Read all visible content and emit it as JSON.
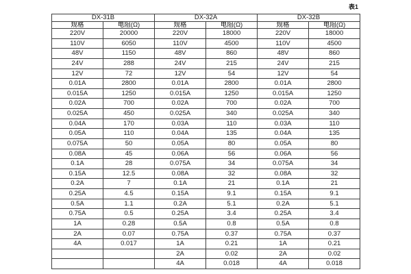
{
  "page": {
    "caption": "表1",
    "colors": {
      "background": "#ffffff",
      "border": "#3d3d3d",
      "text": "#1a1a1a"
    }
  },
  "table": {
    "groups": [
      {
        "name": "DX-31B",
        "col_headers": [
          "规格",
          "电阻(Ω)"
        ]
      },
      {
        "name": "DX-32A",
        "col_headers": [
          "规格",
          "电阻(Ω)"
        ]
      },
      {
        "name": "DX-32B",
        "col_headers": [
          "规格",
          "电阻(Ω)"
        ]
      }
    ],
    "rows": [
      [
        "220V",
        "20000",
        "220V",
        "18000",
        "220V",
        "18000"
      ],
      [
        "110V",
        "6050",
        "110V",
        "4500",
        "110V",
        "4500"
      ],
      [
        "48V",
        "1150",
        "48V",
        "860",
        "48V",
        "860"
      ],
      [
        "24V",
        "288",
        "24V",
        "215",
        "24V",
        "215"
      ],
      [
        "12V",
        "72",
        "12V",
        "54",
        "12V",
        "54"
      ],
      [
        "0.01A",
        "2800",
        "0.01A",
        "2800",
        "0.01A",
        "2800"
      ],
      [
        "0.015A",
        "1250",
        "0.015A",
        "1250",
        "0.015A",
        "1250"
      ],
      [
        "0.02A",
        "700",
        "0.02A",
        "700",
        "0.02A",
        "700"
      ],
      [
        "0.025A",
        "450",
        "0.025A",
        "340",
        "0.025A",
        "340"
      ],
      [
        "0.04A",
        "170",
        "0.03A",
        "110",
        "0.03A",
        "110"
      ],
      [
        "0.05A",
        "110",
        "0.04A",
        "135",
        "0.04A",
        "135"
      ],
      [
        "0.075A",
        "50",
        "0.05A",
        "80",
        "0.05A",
        "80"
      ],
      [
        "0.08A",
        "45",
        "0.06A",
        "56",
        "0.06A",
        "56"
      ],
      [
        "0.1A",
        "28",
        "0.075A",
        "34",
        "0.075A",
        "34"
      ],
      [
        "0.15A",
        "12.5",
        "0.08A",
        "32",
        "0.08A",
        "32"
      ],
      [
        "0.2A",
        "7",
        "0.1A",
        "21",
        "0.1A",
        "21"
      ],
      [
        "0.25A",
        "4.5",
        "0.15A",
        "9.1",
        "0.15A",
        "9.1"
      ],
      [
        "0.5A",
        "1.1",
        "0.2A",
        "5.1",
        "0.2A",
        "5.1"
      ],
      [
        "0.75A",
        "0.5",
        "0.25A",
        "3.4",
        "0.25A",
        "3.4"
      ],
      [
        "1A",
        "0.28",
        "0.5A",
        "0.8",
        "0.5A",
        "0.8"
      ],
      [
        "2A",
        "0.07",
        "0.75A",
        "0.37",
        "0.75A",
        "0.37"
      ],
      [
        "4A",
        "0.017",
        "1A",
        "0.21",
        "1A",
        "0.21"
      ],
      [
        "",
        "",
        "2A",
        "0.02",
        "2A",
        "0.02"
      ],
      [
        "",
        "",
        "4A",
        "0.018",
        "4A",
        "0.018"
      ]
    ]
  }
}
